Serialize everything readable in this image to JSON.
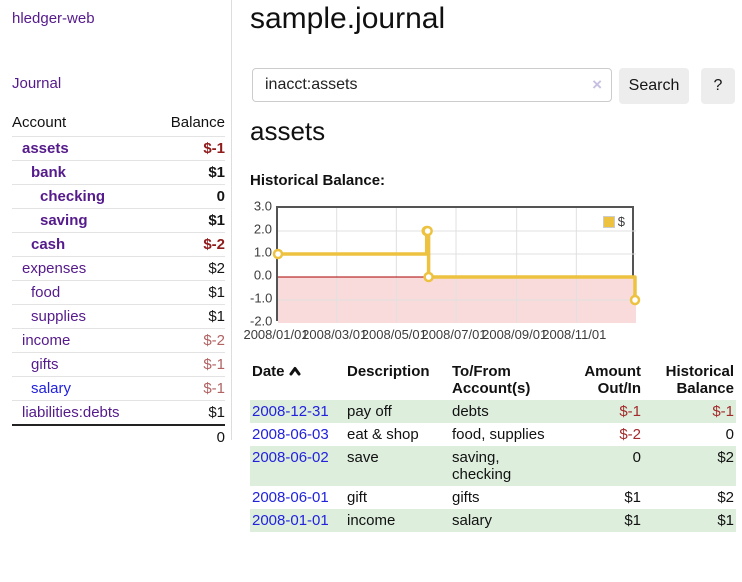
{
  "app": {
    "brand": "hledger-web",
    "nav_journal": "Journal"
  },
  "sidebar": {
    "header": {
      "account": "Account",
      "balance": "Balance"
    },
    "accounts": [
      {
        "name": "assets",
        "indent": 1,
        "bold": true,
        "link_color": "purple",
        "balance": "$-1",
        "balance_style": "neg-strong"
      },
      {
        "name": "bank",
        "indent": 2,
        "bold": true,
        "link_color": "purple",
        "balance": "$1",
        "balance_style": "pos"
      },
      {
        "name": "checking",
        "indent": 3,
        "bold": true,
        "link_color": "purple",
        "balance": "0",
        "balance_style": "pos"
      },
      {
        "name": "saving",
        "indent": 3,
        "bold": true,
        "link_color": "purple",
        "balance": "$1",
        "balance_style": "pos"
      },
      {
        "name": "cash",
        "indent": 2,
        "bold": true,
        "link_color": "purple",
        "balance": "$-2",
        "balance_style": "neg-strong"
      },
      {
        "name": "expenses",
        "indent": 1,
        "bold": false,
        "link_color": "purple",
        "balance": "$2",
        "balance_style": "pos"
      },
      {
        "name": "food",
        "indent": 2,
        "bold": false,
        "link_color": "purple",
        "balance": "$1",
        "balance_style": "pos"
      },
      {
        "name": "supplies",
        "indent": 2,
        "bold": false,
        "link_color": "purple",
        "balance": "$1",
        "balance_style": "pos"
      },
      {
        "name": "income",
        "indent": 1,
        "bold": false,
        "link_color": "purple",
        "balance": "$-2",
        "balance_style": "neg-muted"
      },
      {
        "name": "gifts",
        "indent": 2,
        "bold": false,
        "link_color": "purple",
        "balance": "$-1",
        "balance_style": "neg-muted"
      },
      {
        "name": "salary",
        "indent": 2,
        "bold": false,
        "link_color": "blue",
        "balance": "$-1",
        "balance_style": "neg-muted"
      },
      {
        "name": "liabilities:debts",
        "indent": 1,
        "bold": false,
        "link_color": "purple",
        "balance": "$1",
        "balance_style": "pos"
      }
    ],
    "total": "0"
  },
  "main": {
    "title": "sample.journal",
    "search": {
      "value": "inacct:assets",
      "clear_glyph": "×",
      "button_label": "Search",
      "help_label": "?"
    },
    "account_heading": "assets",
    "chart_title": "Historical Balance:"
  },
  "chart_data": {
    "type": "line",
    "title": "Historical Balance:",
    "step": true,
    "series": [
      {
        "name": "$",
        "color": "#edc240",
        "points": [
          [
            "2008-01-01",
            1
          ],
          [
            "2008-06-01",
            2
          ],
          [
            "2008-06-02",
            2
          ],
          [
            "2008-06-03",
            0
          ],
          [
            "2008-12-31",
            -1
          ]
        ]
      }
    ],
    "x_range": [
      "2008-01-01",
      "2009-01-01"
    ],
    "ylim": [
      -2,
      3
    ],
    "x_ticks": [
      "2008/01/01",
      "2008/03/01",
      "2008/05/01",
      "2008/07/01",
      "2008/09/01",
      "2008/11/01"
    ],
    "y_ticks": [
      "3.0",
      "2.0",
      "1.0",
      "0.0",
      "-1.0",
      "-2.0"
    ],
    "grid": true,
    "grid_color": "#e0e0e0",
    "zero_line_color": "#aa0000",
    "negative_region_fill": "#fadbdb",
    "legend_position": "top-right",
    "legend_label": "$"
  },
  "register": {
    "headers": {
      "date": "Date",
      "description": "Description",
      "accounts": "To/From\nAccount(s)",
      "amount": "Amount\nOut/In",
      "balance": "Historical\nBalance"
    },
    "sort": {
      "column": "date",
      "direction": "asc"
    },
    "rows": [
      {
        "date": "2008-12-31",
        "description": "pay off",
        "accounts": "debts",
        "amount": "$-1",
        "amount_neg": true,
        "balance": "$-1",
        "balance_neg": true
      },
      {
        "date": "2008-06-03",
        "description": "eat & shop",
        "accounts": "food, supplies",
        "amount": "$-2",
        "amount_neg": true,
        "balance": "0",
        "balance_neg": false
      },
      {
        "date": "2008-06-02",
        "description": "save",
        "accounts": "saving, checking",
        "amount": "0",
        "amount_neg": false,
        "balance": "$2",
        "balance_neg": false
      },
      {
        "date": "2008-06-01",
        "description": "gift",
        "accounts": "gifts",
        "amount": "$1",
        "amount_neg": false,
        "balance": "$2",
        "balance_neg": false
      },
      {
        "date": "2008-01-01",
        "description": "income",
        "accounts": "salary",
        "amount": "$1",
        "amount_neg": false,
        "balance": "$1",
        "balance_neg": false
      }
    ]
  }
}
